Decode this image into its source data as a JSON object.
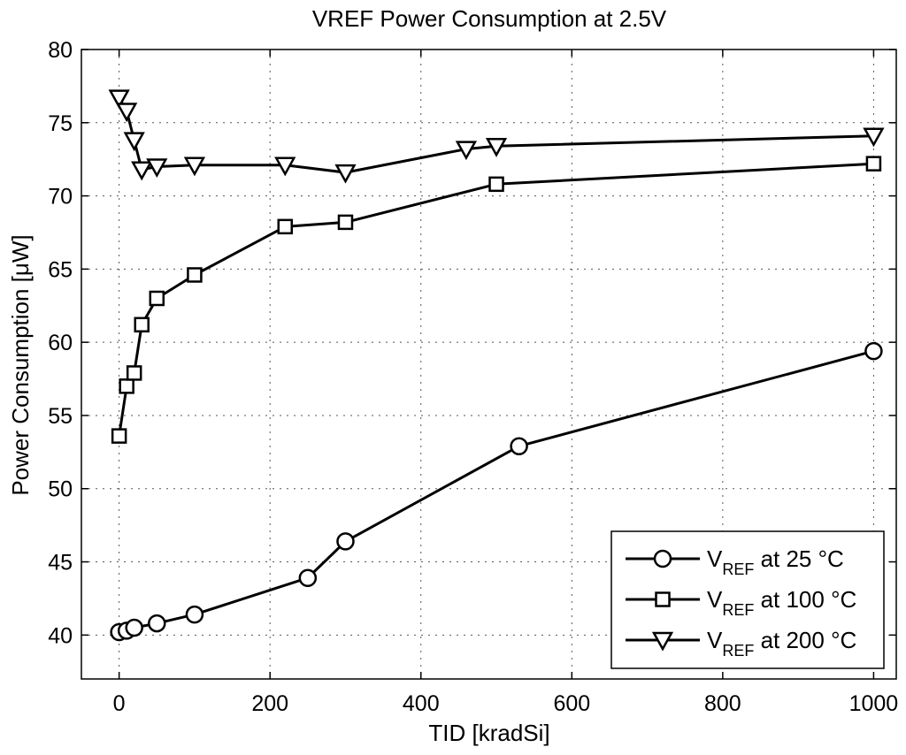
{
  "chart_data": {
    "type": "line",
    "title": "VREF Power Consumption at 2.5V",
    "xlabel": "TID [kradSi]",
    "ylabel": "Power Consumption [μW]",
    "xlim": [
      -50,
      1030
    ],
    "ylim": [
      37,
      80
    ],
    "xticks": [
      0,
      200,
      400,
      600,
      800,
      1000
    ],
    "yticks": [
      40,
      45,
      50,
      55,
      60,
      65,
      70,
      75,
      80
    ],
    "grid": true,
    "legend_position": "bottom-right",
    "series": [
      {
        "name": "V_REF at 25 °C",
        "legend_main": "V",
        "legend_sub": "REF",
        "legend_rest": " at 25 °C",
        "marker": "circle",
        "x": [
          0,
          10,
          20,
          50,
          100,
          250,
          300,
          530,
          1000
        ],
        "y": [
          40.2,
          40.3,
          40.5,
          40.8,
          41.4,
          43.9,
          46.4,
          52.9,
          59.4
        ]
      },
      {
        "name": "V_REF at 100 °C",
        "legend_main": "V",
        "legend_sub": "REF",
        "legend_rest": " at 100 °C",
        "marker": "square",
        "x": [
          0,
          10,
          20,
          30,
          50,
          100,
          220,
          300,
          500,
          1000
        ],
        "y": [
          53.6,
          57.0,
          57.9,
          61.2,
          63.0,
          64.6,
          67.9,
          68.2,
          70.8,
          72.2
        ]
      },
      {
        "name": "V_REF at 200 °C",
        "legend_main": "V",
        "legend_sub": "REF",
        "legend_rest": " at 200 °C",
        "marker": "triangle-down",
        "x": [
          0,
          10,
          20,
          30,
          50,
          100,
          220,
          300,
          460,
          500,
          1000
        ],
        "y": [
          76.7,
          75.8,
          73.8,
          71.8,
          72.0,
          72.1,
          72.1,
          71.6,
          73.2,
          73.4,
          74.1
        ]
      }
    ]
  }
}
